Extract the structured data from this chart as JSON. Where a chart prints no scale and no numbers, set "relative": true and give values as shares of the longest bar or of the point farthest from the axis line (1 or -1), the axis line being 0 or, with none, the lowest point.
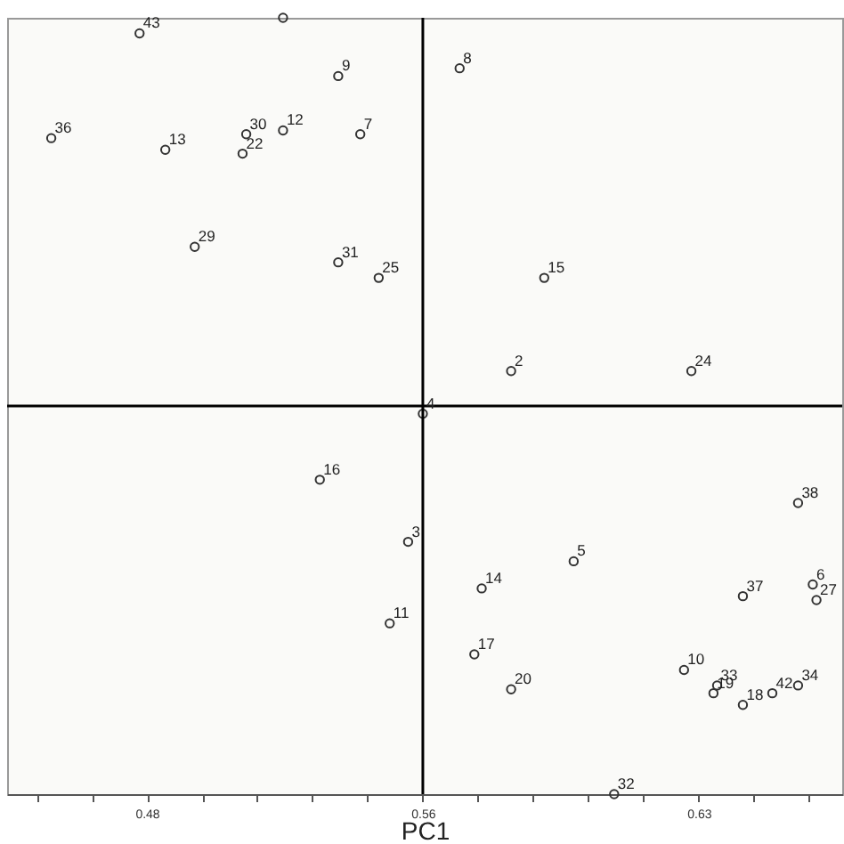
{
  "chart_data": {
    "type": "scatter",
    "xlabel": "PC1",
    "relative": true,
    "marker": "circle",
    "grid": false,
    "xlim": [
      0.447,
      0.674
    ],
    "xticks": [
      {
        "value": 0.455,
        "label": null
      },
      {
        "value": 0.47,
        "label": null
      },
      {
        "value": 0.485,
        "label": "0.48"
      },
      {
        "value": 0.5,
        "label": null
      },
      {
        "value": 0.515,
        "label": null
      },
      {
        "value": 0.53,
        "label": null
      },
      {
        "value": 0.545,
        "label": null
      },
      {
        "value": 0.56,
        "label": "0.56"
      },
      {
        "value": 0.575,
        "label": null
      },
      {
        "value": 0.59,
        "label": null
      },
      {
        "value": 0.605,
        "label": null
      },
      {
        "value": 0.62,
        "label": null
      },
      {
        "value": 0.635,
        "label": "0.63"
      },
      {
        "value": 0.65,
        "label": null
      },
      {
        "value": 0.665,
        "label": null
      }
    ],
    "x": [
      0.483,
      0.522,
      0.537,
      0.459,
      0.49,
      0.512,
      0.511,
      0.522,
      0.543,
      0.498,
      0.537,
      0.548,
      0.57,
      0.593,
      0.584,
      0.633,
      0.56,
      0.532,
      0.556,
      0.551,
      0.662,
      0.601,
      0.576,
      0.666,
      0.667,
      0.647,
      0.574,
      0.584,
      0.631,
      0.639,
      0.64,
      0.647,
      0.655,
      0.662,
      0.612
    ],
    "series": [
      {
        "color": "#333333",
        "values": [
          0.96,
          1.0,
          0.85,
          0.69,
          0.66,
          0.7,
          0.65,
          0.71,
          0.7,
          0.41,
          0.37,
          0.33,
          0.87,
          0.33,
          0.09,
          0.09,
          -0.02,
          -0.19,
          -0.35,
          -0.56,
          -0.25,
          -0.4,
          -0.47,
          -0.46,
          -0.5,
          -0.49,
          -0.64,
          -0.73,
          -0.68,
          -0.74,
          -0.72,
          -0.77,
          -0.74,
          -0.72,
          -1.0
        ]
      }
    ],
    "ref_lines": [
      {
        "axis": "x",
        "value": 0.56,
        "color": "#000000"
      },
      {
        "axis": "y",
        "value": 0,
        "color": "#000000"
      }
    ],
    "annotations": [
      {
        "text": "43",
        "x": 0.483,
        "y": 0.96
      },
      {
        "text": "9",
        "x": 0.537,
        "y": 0.85
      },
      {
        "text": "36",
        "x": 0.459,
        "y": 0.69
      },
      {
        "text": "13",
        "x": 0.49,
        "y": 0.66
      },
      {
        "text": "30",
        "x": 0.512,
        "y": 0.7
      },
      {
        "text": "22",
        "x": 0.511,
        "y": 0.65
      },
      {
        "text": "12",
        "x": 0.522,
        "y": 0.71
      },
      {
        "text": "7",
        "x": 0.543,
        "y": 0.7
      },
      {
        "text": "29",
        "x": 0.498,
        "y": 0.41
      },
      {
        "text": "31",
        "x": 0.537,
        "y": 0.37
      },
      {
        "text": "25",
        "x": 0.548,
        "y": 0.33
      },
      {
        "text": "8",
        "x": 0.57,
        "y": 0.87
      },
      {
        "text": "15",
        "x": 0.593,
        "y": 0.33
      },
      {
        "text": "2",
        "x": 0.584,
        "y": 0.09
      },
      {
        "text": "24",
        "x": 0.633,
        "y": 0.09
      },
      {
        "text": "4",
        "x": 0.56,
        "y": -0.02
      },
      {
        "text": "16",
        "x": 0.532,
        "y": -0.19
      },
      {
        "text": "3",
        "x": 0.556,
        "y": -0.35
      },
      {
        "text": "11",
        "x": 0.551,
        "y": -0.56
      },
      {
        "text": "38",
        "x": 0.662,
        "y": -0.25
      },
      {
        "text": "5",
        "x": 0.601,
        "y": -0.4
      },
      {
        "text": "14",
        "x": 0.576,
        "y": -0.47
      },
      {
        "text": "6",
        "x": 0.666,
        "y": -0.46
      },
      {
        "text": "27",
        "x": 0.667,
        "y": -0.5
      },
      {
        "text": "37",
        "x": 0.647,
        "y": -0.49
      },
      {
        "text": "17",
        "x": 0.574,
        "y": -0.64
      },
      {
        "text": "20",
        "x": 0.584,
        "y": -0.73
      },
      {
        "text": "10",
        "x": 0.631,
        "y": -0.68
      },
      {
        "text": "19",
        "x": 0.639,
        "y": -0.74
      },
      {
        "text": "33",
        "x": 0.64,
        "y": -0.72
      },
      {
        "text": "18",
        "x": 0.647,
        "y": -0.77
      },
      {
        "text": "42",
        "x": 0.655,
        "y": -0.74
      },
      {
        "text": "34",
        "x": 0.662,
        "y": -0.72
      },
      {
        "text": "32",
        "x": 0.612,
        "y": -1.0
      }
    ]
  }
}
